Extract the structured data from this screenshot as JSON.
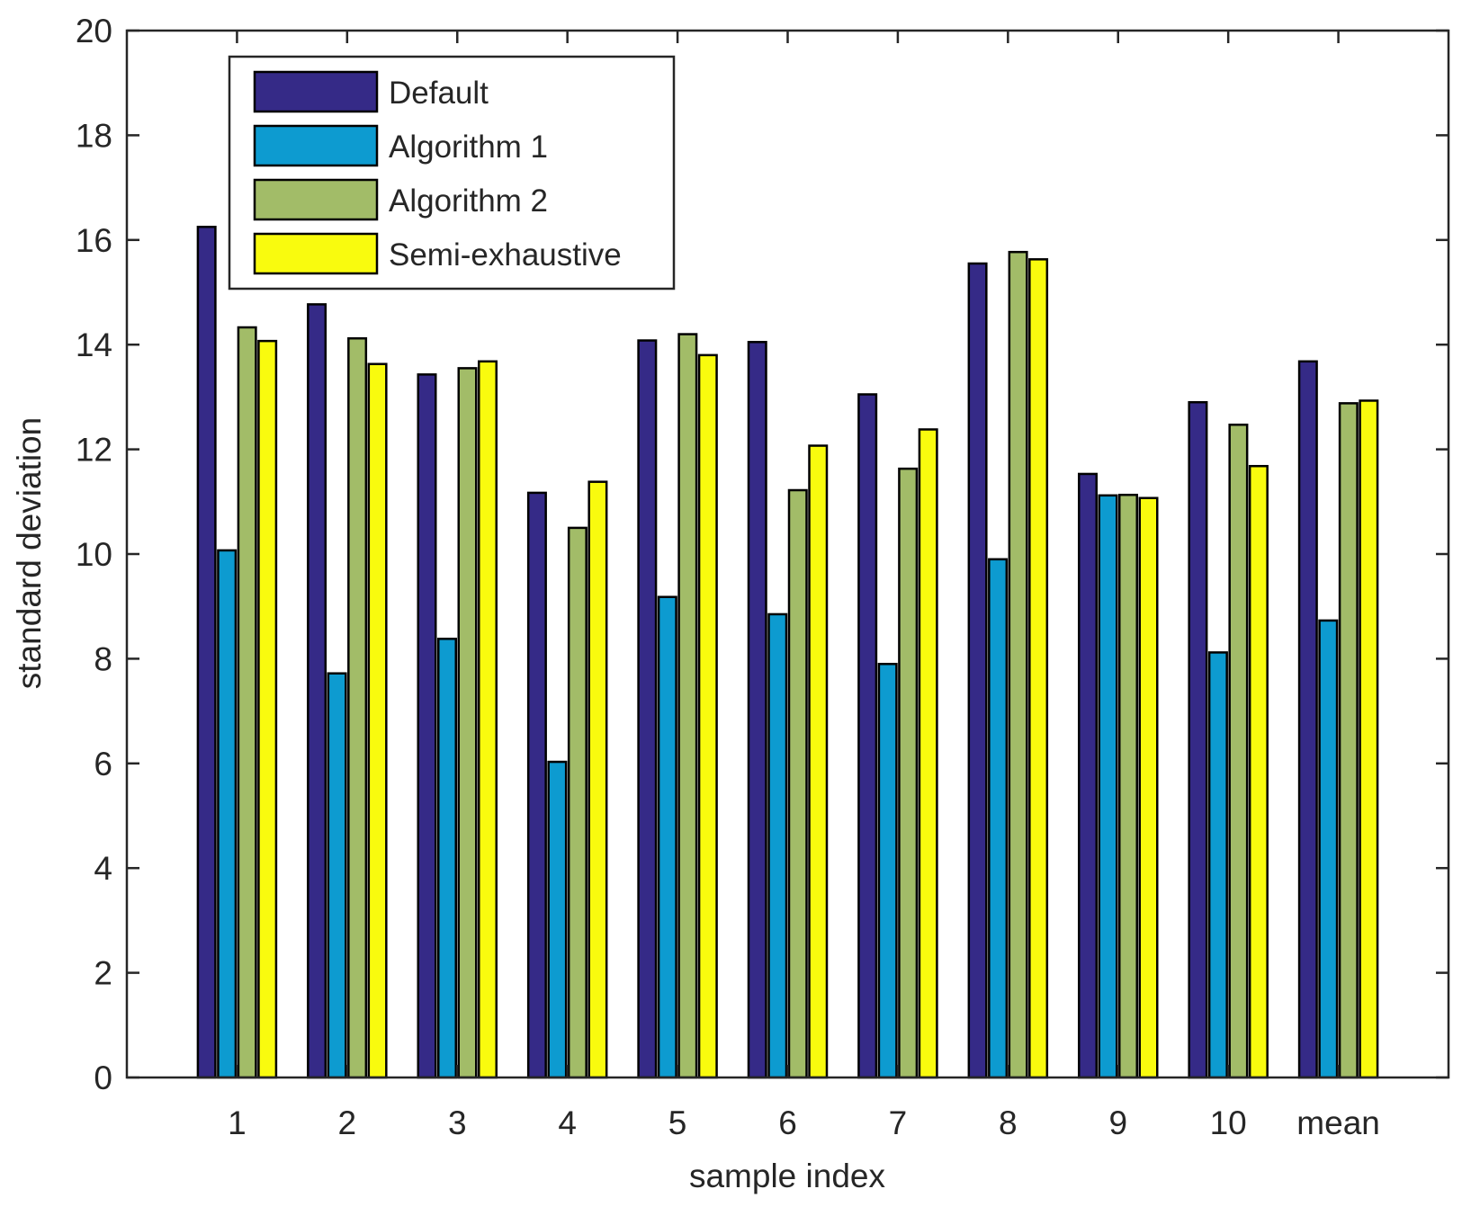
{
  "chart_data": {
    "type": "bar",
    "title": "",
    "xlabel": "sample index",
    "ylabel": "standard deviation",
    "categories": [
      "1",
      "2",
      "3",
      "4",
      "5",
      "6",
      "7",
      "8",
      "9",
      "10",
      "mean"
    ],
    "ylim": [
      0,
      20
    ],
    "yticks": [
      "0",
      "2",
      "4",
      "6",
      "8",
      "10",
      "12",
      "14",
      "16",
      "18",
      "20"
    ],
    "grid": false,
    "legend_position": "top-left",
    "series": [
      {
        "name": "Default",
        "color": "#352a87",
        "values": [
          16.25,
          14.77,
          13.43,
          11.17,
          14.08,
          14.05,
          13.05,
          15.55,
          11.53,
          12.9,
          13.68
        ]
      },
      {
        "name": "Algorithm 1",
        "color": "#0d9bd0",
        "values": [
          10.07,
          7.72,
          8.38,
          6.03,
          9.18,
          8.85,
          7.9,
          9.9,
          11.12,
          8.12,
          8.73
        ]
      },
      {
        "name": "Algorithm 2",
        "color": "#a2bc68",
        "values": [
          14.33,
          14.12,
          13.55,
          10.5,
          14.2,
          11.22,
          11.63,
          15.77,
          11.13,
          12.47,
          12.88
        ]
      },
      {
        "name": "Semi-exhaustive",
        "color": "#f9fb0e",
        "values": [
          14.07,
          13.63,
          13.68,
          11.38,
          13.8,
          12.07,
          12.38,
          15.63,
          11.07,
          11.68,
          12.93
        ]
      }
    ]
  }
}
